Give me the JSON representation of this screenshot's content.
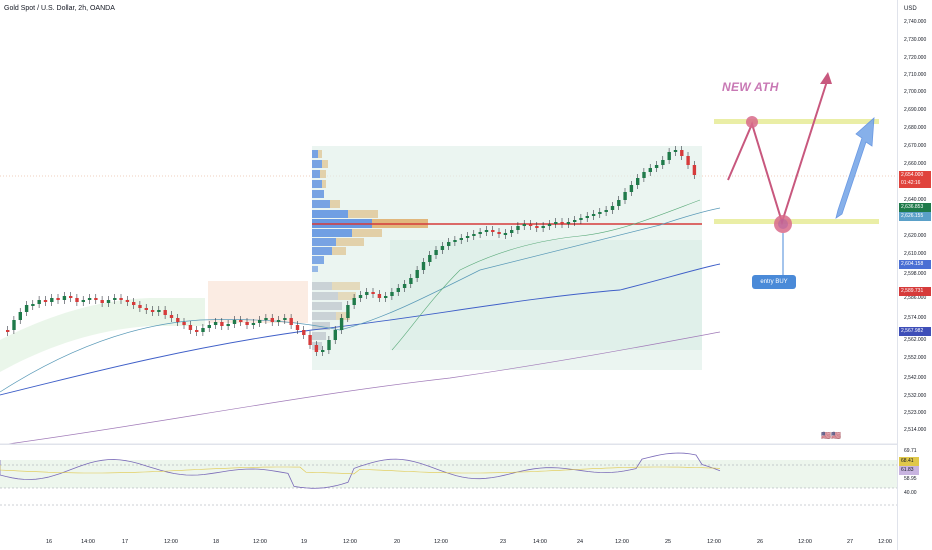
{
  "header": {
    "symbol_title": "Gold Spot / U.S. Dollar, 2h, OANDA"
  },
  "price_axis": {
    "currency": "USD",
    "labels": [
      "2,740.000",
      "2,730.000",
      "2,720.000",
      "2,710.000",
      "2,700.000",
      "2,690.000",
      "2,680.000",
      "2,670.000",
      "2,660.000",
      "2,640.000",
      "2,620.000",
      "2,610.000",
      "2,598.000",
      "2,586.000",
      "2,574.000",
      "2,562.000",
      "2,552.000",
      "2,542.000",
      "2,532.000",
      "2,523.000",
      "2,514.000"
    ],
    "tags": [
      {
        "text": "2,654.000",
        "color": "#e0433c"
      },
      {
        "text": "01:42:16",
        "color": "#e0433c"
      },
      {
        "text": "2,636.853",
        "color": "#1f7a4a"
      },
      {
        "text": "2,626.155",
        "color": "#5aa0c8"
      },
      {
        "text": "2,604.158",
        "color": "#4a6fd4"
      },
      {
        "text": "2,589.731",
        "color": "#d63b3b"
      },
      {
        "text": "2,567.982",
        "color": "#3f4fb8"
      }
    ]
  },
  "rsi_axis": {
    "labels": [
      "69.71",
      "68.41",
      "61.83",
      "58.95",
      "40.00"
    ]
  },
  "time_axis": {
    "labels": [
      "16",
      "14:00",
      "17",
      "12:00",
      "18",
      "12:00",
      "19",
      "12:00",
      "20",
      "12:00",
      "23",
      "14:00",
      "24",
      "12:00",
      "25",
      "12:00",
      "26",
      "12:00",
      "27",
      "12:00"
    ]
  },
  "annotations": {
    "ath_label": "NEW ATH",
    "buy_label": "entry BUY"
  },
  "colors": {
    "bull": "#26a69a",
    "bear": "#ef5350",
    "arrow_path": "#c8587e",
    "blue_arrow": "#5b8fe0",
    "zone": "#e8ec9c",
    "volume_profile_up": "#5b8fe0",
    "volume_profile_down": "#e0c89a",
    "poc_line": "#d63b3b"
  }
}
